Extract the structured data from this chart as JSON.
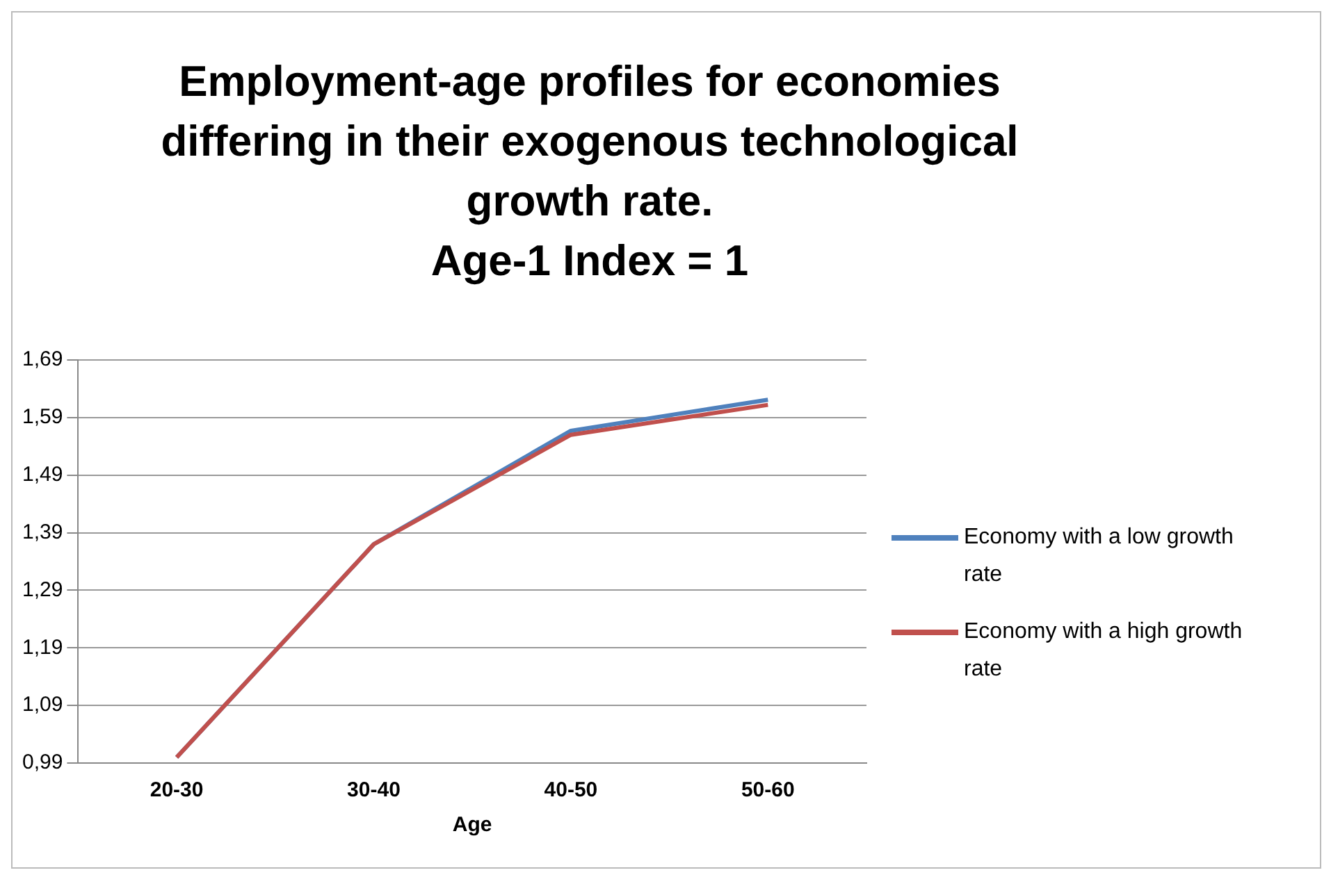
{
  "chart_data": {
    "type": "line",
    "title": "Employment-age profiles for economies differing in their exogenous technological growth rate.",
    "subtitle": "Age-1 Index = 1",
    "xlabel": "Age",
    "categories": [
      "20-30",
      "30-40",
      "40-50",
      "50-60"
    ],
    "series": [
      {
        "name": "Economy with a low growth rate",
        "color": "#4f81bd",
        "values": [
          1.0,
          1.37,
          1.567,
          1.621
        ]
      },
      {
        "name": "Economy with a high growth rate",
        "color": "#c0504d",
        "values": [
          1.0,
          1.37,
          1.56,
          1.612
        ]
      }
    ],
    "ylim": [
      0.99,
      1.69
    ],
    "yticks": [
      {
        "value": 0.99,
        "label": "0,99"
      },
      {
        "value": 1.09,
        "label": "1,09"
      },
      {
        "value": 1.19,
        "label": "1,19"
      },
      {
        "value": 1.29,
        "label": "1,29"
      },
      {
        "value": 1.39,
        "label": "1,39"
      },
      {
        "value": 1.49,
        "label": "1,49"
      },
      {
        "value": 1.59,
        "label": "1,59"
      },
      {
        "value": 1.69,
        "label": "1,69"
      }
    ],
    "grid": "y",
    "legend": "right",
    "marker": "none",
    "line_style": "solid"
  }
}
